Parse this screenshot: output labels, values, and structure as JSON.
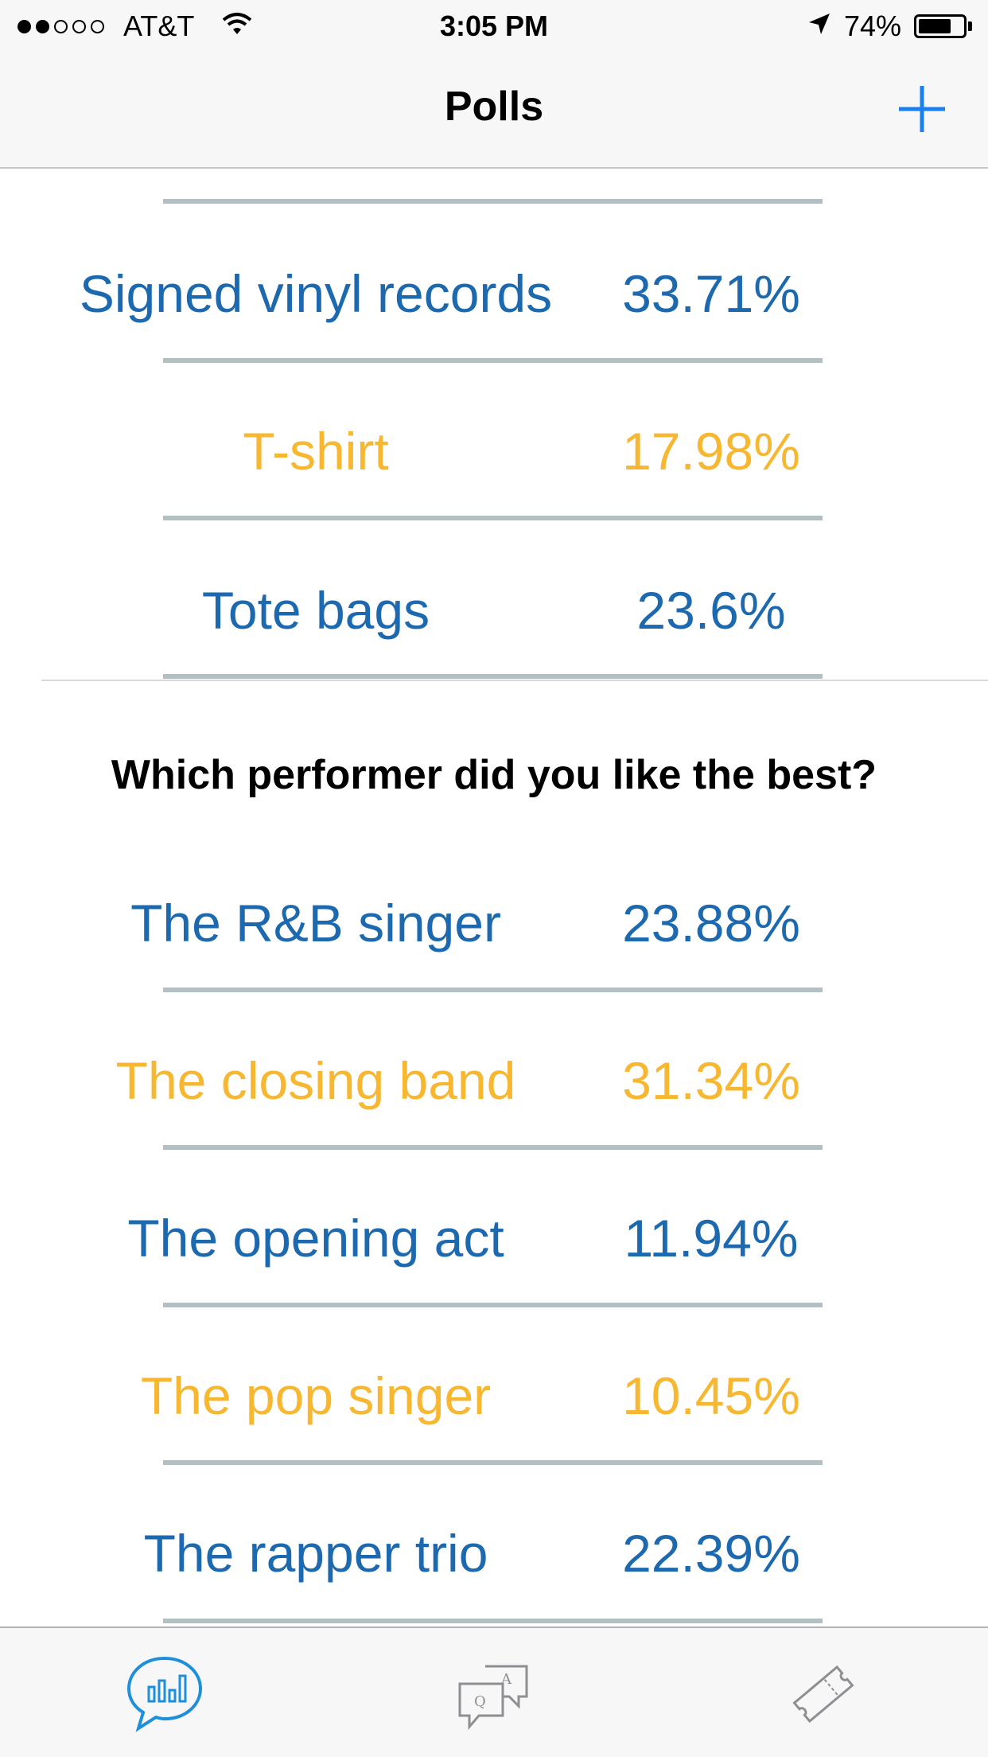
{
  "status_bar": {
    "carrier": "AT&T",
    "time": "3:05 PM",
    "battery_percent": "74%",
    "battery_level": 0.74,
    "signal_bars_filled": 2,
    "signal_bars_total": 5
  },
  "nav": {
    "title": "Polls",
    "add_icon": "plus-icon"
  },
  "poll_merch": {
    "options": [
      {
        "label": "Signed vinyl records",
        "value": "33.71%",
        "color": "#1d69b0"
      },
      {
        "label": "T-shirt",
        "value": "17.98%",
        "color": "#f7b731"
      },
      {
        "label": "Tote bags",
        "value": "23.6%",
        "color": "#1d69b0"
      }
    ]
  },
  "poll_performer": {
    "question": "Which performer did you like the best?",
    "options": [
      {
        "label": "The R&B singer",
        "value": "23.88%",
        "color": "#1d69b0"
      },
      {
        "label": "The closing band",
        "value": "31.34%",
        "color": "#f7b731"
      },
      {
        "label": "The opening act",
        "value": "11.94%",
        "color": "#1d69b0"
      },
      {
        "label": "The pop singer",
        "value": "10.45%",
        "color": "#f7b731"
      },
      {
        "label": "The rapper trio",
        "value": "22.39%",
        "color": "#1d69b0"
      }
    ]
  },
  "tab_bar": {
    "tabs": [
      {
        "icon": "poll-chat-icon",
        "active": true
      },
      {
        "icon": "qa-chat-icon",
        "active": false
      },
      {
        "icon": "ticket-icon",
        "active": false
      }
    ],
    "active_color": "#1e8fdb",
    "inactive_color": "#8e8e93"
  }
}
